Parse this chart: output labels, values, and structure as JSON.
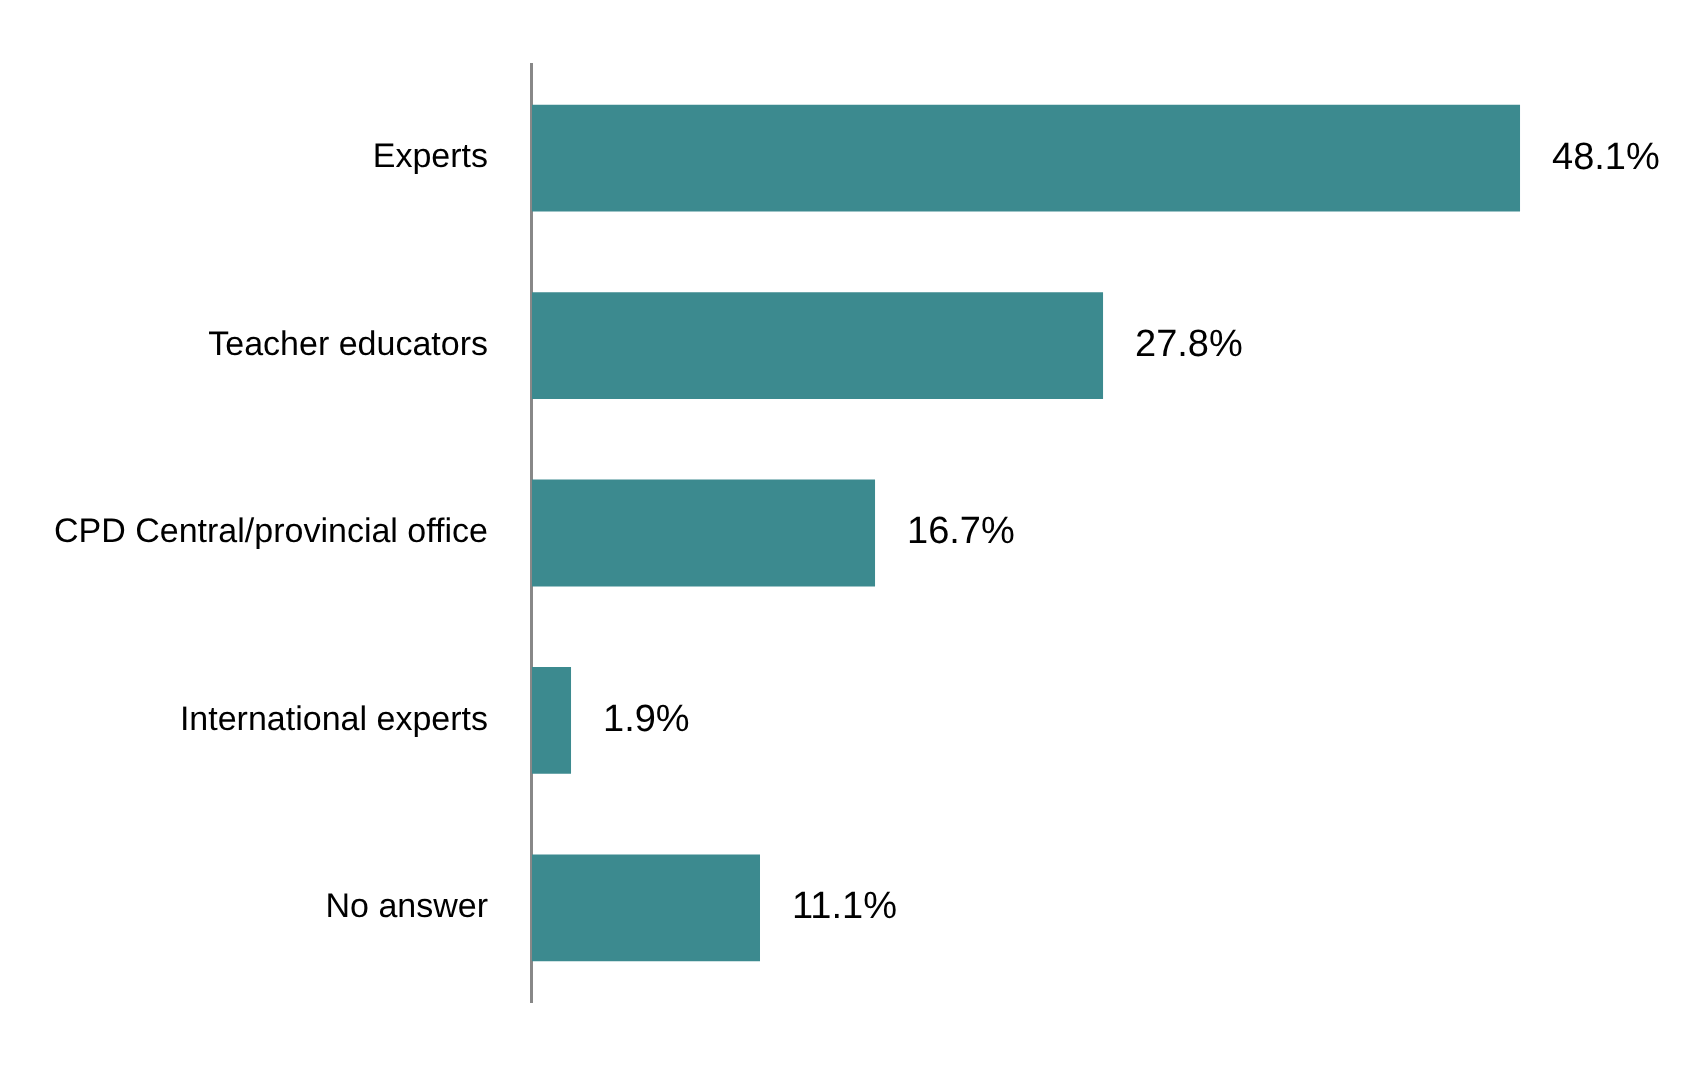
{
  "chart_data": {
    "type": "bar",
    "orientation": "horizontal",
    "categories": [
      "Experts",
      "Teacher educators",
      "CPD Central/provincial office",
      "International experts",
      "No answer"
    ],
    "values": [
      48.1,
      27.8,
      16.7,
      1.9,
      11.1
    ],
    "value_labels": [
      "48.1%",
      "27.8%",
      "16.7%",
      "1.9%",
      "11.1%"
    ],
    "color": "#3c8a8f",
    "legend": false
  }
}
